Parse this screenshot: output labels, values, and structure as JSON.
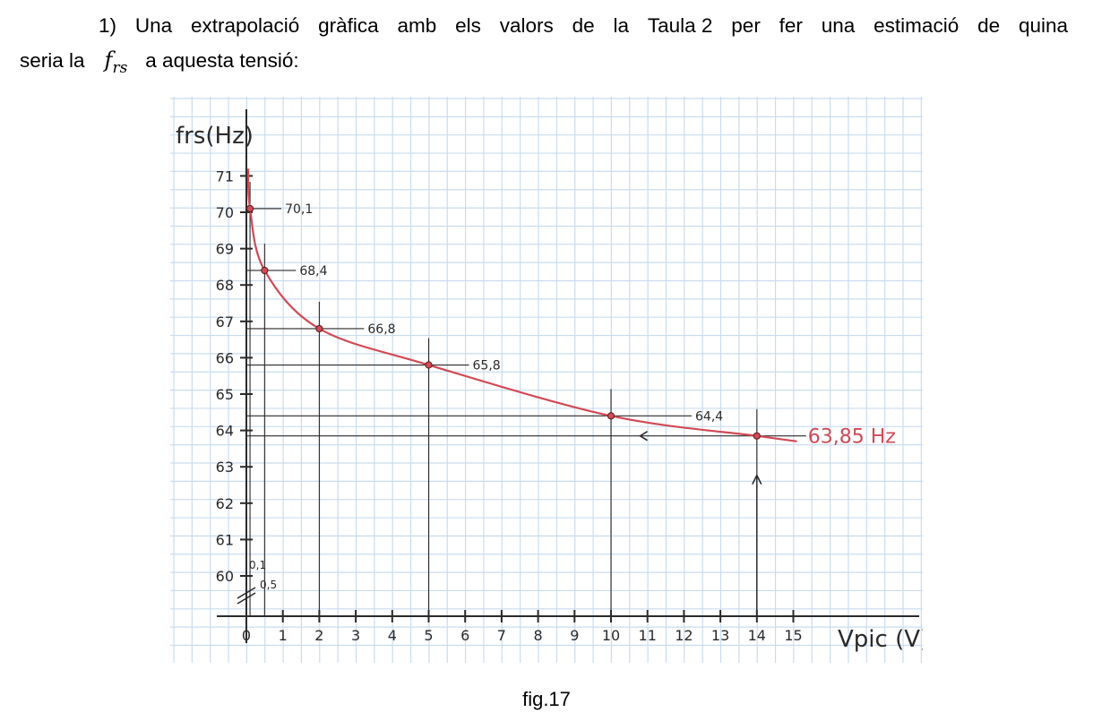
{
  "text": {
    "line1_words": [
      "1)",
      "Una",
      "extrapolació",
      "gràfica",
      "amb",
      "els",
      "valors",
      "de",
      "la",
      "Taula 2",
      "per",
      "fer",
      "una",
      "estimació",
      "de",
      "quina"
    ],
    "line2_prefix": "seria la",
    "symbol_base": "f",
    "symbol_sub": "rs",
    "line2_suffix": "a aquesta tensió:",
    "caption": "fig.17"
  },
  "chart_data": {
    "type": "line",
    "title": "",
    "xlabel": "Vpic (V)",
    "ylabel": "frs(Hz)",
    "xlim": [
      0,
      15
    ],
    "ylim": [
      60,
      71
    ],
    "grid": true,
    "x_ticks": [
      0,
      1,
      2,
      3,
      4,
      5,
      6,
      7,
      8,
      9,
      10,
      11,
      12,
      13,
      14,
      15
    ],
    "y_ticks": [
      60,
      61,
      62,
      63,
      64,
      65,
      66,
      67,
      68,
      69,
      70,
      71
    ],
    "series": [
      {
        "name": "",
        "color": "#d04a55",
        "points": [
          {
            "x": 0.1,
            "y": 70.1,
            "label": "70,1"
          },
          {
            "x": 0.5,
            "y": 68.4,
            "label": "68,4"
          },
          {
            "x": 2,
            "y": 66.8,
            "label": "66,8"
          },
          {
            "x": 5,
            "y": 65.8,
            "label": "65,8"
          },
          {
            "x": 10,
            "y": 64.4,
            "label": "64,4"
          },
          {
            "x": 14,
            "y": 63.85,
            "label": ""
          }
        ]
      }
    ],
    "x_annotations": [
      "0,1",
      "0,5"
    ],
    "estimate_label": "63,85 Hz",
    "estimate_color": "#d04a55"
  }
}
